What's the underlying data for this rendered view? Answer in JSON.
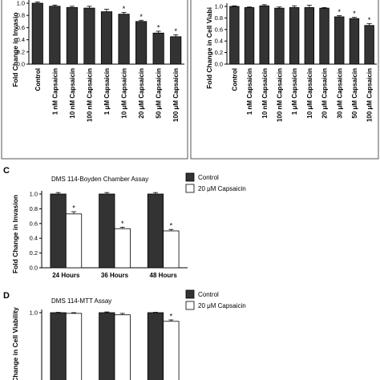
{
  "colors": {
    "dark_bar": "#333333",
    "light_bar": "#ffffff",
    "error": "#000000"
  },
  "chart_data": [
    {
      "panel": "",
      "type": "bar",
      "title": "",
      "ylabel": "Fold Change in Invasio",
      "xlabel": "",
      "ylim": [
        0,
        1.0
      ],
      "yticks": [
        "0.0",
        "0.2",
        "0.4",
        "0.6",
        "0.8",
        "1.0"
      ],
      "categories": [
        "Control",
        "1 nM Capsaicin",
        "10 nM Capsaicin",
        "100 nM Capsaicin",
        "1 μM Capsaicin",
        "10 μM Capsaicin",
        "20 μM Capsaicin",
        "50 μM Capsaicin",
        "100 μM Capsaicin"
      ],
      "values": [
        1.0,
        0.95,
        0.93,
        0.92,
        0.86,
        0.82,
        0.7,
        0.51,
        0.45
      ],
      "errors": [
        0.02,
        0.02,
        0.02,
        0.03,
        0.04,
        0.03,
        0.02,
        0.03,
        0.03
      ],
      "significant": [
        false,
        false,
        false,
        false,
        false,
        true,
        true,
        true,
        true
      ],
      "marker": "*"
    },
    {
      "panel": "",
      "type": "bar",
      "title": "",
      "ylabel": "Fold Change in Cell Viabi",
      "xlabel": "",
      "ylim": [
        0,
        1.0
      ],
      "yticks": [
        "0.0",
        "0.2",
        "0.4",
        "0.6",
        "0.8",
        "1.0"
      ],
      "categories": [
        "Control",
        "1 nM Capsaicin",
        "10 nM Capsaicin",
        "100 nM Capsaicin",
        "1 μM Capsaicin",
        "10 μM Capsaicin",
        "20 μM Capsaicin",
        "30 μM Capsaicin",
        "50 μM Capsaicin",
        "100 μM Capsaicin"
      ],
      "values": [
        1.0,
        0.98,
        1.01,
        0.97,
        0.98,
        0.98,
        0.97,
        0.82,
        0.79,
        0.67
      ],
      "errors": [
        0.01,
        0.01,
        0.02,
        0.02,
        0.03,
        0.04,
        0.01,
        0.02,
        0.02,
        0.03
      ],
      "significant": [
        false,
        false,
        false,
        false,
        false,
        false,
        false,
        true,
        true,
        true
      ],
      "marker": "*"
    },
    {
      "panel": "C",
      "type": "bar",
      "title": "DMS 114-Boyden Chamber Assay",
      "ylabel": "Fold Change in Invasion",
      "xlabel": "",
      "ylim": [
        0,
        1.0
      ],
      "yticks": [
        "0.0",
        "0.2",
        "0.4",
        "0.6",
        "0.8",
        "1.0"
      ],
      "categories": [
        "24 Hours",
        "36 Hours",
        "48 Hours"
      ],
      "series": [
        {
          "name": "Control",
          "values": [
            1.0,
            1.0,
            1.0
          ],
          "errors": [
            0.02,
            0.02,
            0.02
          ],
          "significant": [
            false,
            false,
            false
          ]
        },
        {
          "name": "20 μM Capsaicin",
          "values": [
            0.73,
            0.53,
            0.5
          ],
          "errors": [
            0.03,
            0.02,
            0.02
          ],
          "significant": [
            true,
            true,
            true
          ]
        }
      ],
      "legend_position": "top-right",
      "marker": "*"
    },
    {
      "panel": "D",
      "type": "bar",
      "title": "DMS 114-MTT Assay",
      "ylabel": "Change in Cell Viability",
      "xlabel": "",
      "ylim": [
        0,
        1.0
      ],
      "yticks": [
        "1.0"
      ],
      "categories": [
        "",
        "",
        ""
      ],
      "series": [
        {
          "name": "Control",
          "values": [
            1.0,
            1.0,
            1.0
          ],
          "errors": [
            0.005,
            0.01,
            0.005
          ],
          "significant": [
            false,
            false,
            false
          ]
        },
        {
          "name": "20 μM Capsaicin",
          "values": [
            0.99,
            0.97,
            0.88
          ],
          "errors": [
            0.01,
            0.02,
            0.02
          ],
          "significant": [
            false,
            false,
            true
          ]
        }
      ],
      "legend_position": "top-right",
      "marker": "*"
    }
  ]
}
